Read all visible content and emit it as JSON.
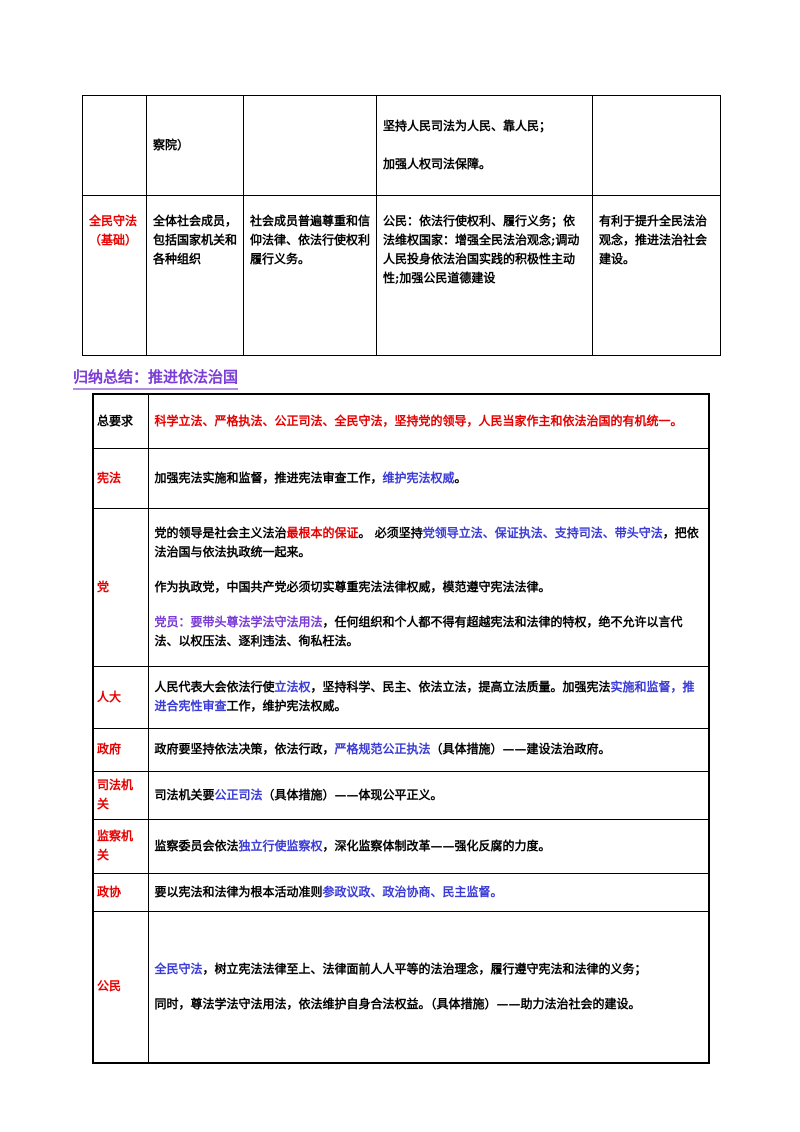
{
  "top_table": {
    "rows": [
      {
        "cells": [
          null,
          {
            "paragraphs": [
              "察院）"
            ]
          },
          null,
          {
            "paragraphs": [
              "坚持人民司法为人民、靠人民；",
              "加强人权司法保障。"
            ]
          },
          null
        ]
      },
      {
        "cells": [
          {
            "paragraphs": [
              "全民守法（基础）"
            ],
            "color": "#e60000"
          },
          {
            "paragraphs": [
              "全体社会成员，包括国家机关和各种组织"
            ]
          },
          {
            "paragraphs": [
              "社会成员普遍尊重和信仰法律、依法行使权利履行义务。"
            ]
          },
          {
            "paragraphs": [
              "公民：依法行使权利、履行义务；依法维权国家：增强全民法治观念;调动人民投身依法治国实践的积极性主动性;加强公民道德建设"
            ]
          },
          {
            "paragraphs": [
              "有利于提升全民法治观念，推进法治社会建设。"
            ]
          }
        ]
      }
    ]
  },
  "section_heading": "归纳总结：推进依法治国",
  "summary_table": {
    "rows": [
      {
        "label": "总要求",
        "label_color": "#000000",
        "paragraphs": [
          [
            {
              "text": "科学立法、严格执法、公正司法、全民守法，坚持党的领导，人民当家作主和依法治国的有机统一。",
              "color": "#e60000"
            }
          ]
        ]
      },
      {
        "label": "宪法",
        "label_color": "#e60000",
        "paragraphs": [
          [
            {
              "text": "加强宪法实施和监督，推进宪法审查工作，",
              "color": "#000000"
            },
            {
              "text": "维护宪法权威",
              "color": "#3b3bd6"
            },
            {
              "text": "。",
              "color": "#000000"
            }
          ]
        ]
      },
      {
        "label": "党",
        "label_color": "#e60000",
        "paragraphs": [
          [
            {
              "text": "党的领导是社会主义法治",
              "color": "#000000"
            },
            {
              "text": "最根本的保证",
              "color": "#e60000"
            },
            {
              "text": "。 必须坚持",
              "color": "#000000"
            },
            {
              "text": "党领导立法、保证执法、支持司法、带头守法",
              "color": "#3b3bd6"
            },
            {
              "text": "，把依法治国与依法执政统一起来。",
              "color": "#000000"
            }
          ],
          [
            {
              "text": "作为执政党，中国共产党必须切实尊重宪法法律权威，模范遵守宪法法律。",
              "color": "#000000"
            }
          ],
          [
            {
              "text": "党员：要带头尊法学法守法用法",
              "color": "#7a3bd6"
            },
            {
              "text": "，任何组织和个人都不得有超越宪法和法律的特权，绝不允许以言代法、以权压法、逐利违法、徇私枉法。",
              "color": "#000000"
            }
          ]
        ]
      },
      {
        "label": "人大",
        "label_color": "#e60000",
        "paragraphs": [
          [
            {
              "text": "人民代表大会依法行使",
              "color": "#000000"
            },
            {
              "text": "立法权",
              "color": "#3b3bd6"
            },
            {
              "text": "，坚持科学、民主、依法立法，提高立法质量。加强宪法",
              "color": "#000000"
            },
            {
              "text": "实施和监督，推进合宪性审查",
              "color": "#3b3bd6"
            },
            {
              "text": "工作，维护宪法权威。",
              "color": "#000000"
            }
          ]
        ]
      },
      {
        "label": "政府",
        "label_color": "#e60000",
        "paragraphs": [
          [
            {
              "text": "政府要坚持依法决策，依法行政，",
              "color": "#000000"
            },
            {
              "text": "严格规范公正执法",
              "color": "#3b3bd6"
            },
            {
              "text": "（具体措施）——建设法治政府。",
              "color": "#000000"
            }
          ]
        ]
      },
      {
        "label": "司法机关",
        "label_color": "#e60000",
        "paragraphs": [
          [
            {
              "text": "司法机关要",
              "color": "#000000"
            },
            {
              "text": "公正司法",
              "color": "#3b3bd6"
            },
            {
              "text": "（具体措施）——体现公平正义。",
              "color": "#000000"
            }
          ]
        ]
      },
      {
        "label": "监察机关",
        "label_color": "#e60000",
        "paragraphs": [
          [
            {
              "text": "监察委员会依法",
              "color": "#000000"
            },
            {
              "text": "独立行使监察权",
              "color": "#3b3bd6"
            },
            {
              "text": "，深化监察体制改革——强化反腐的力度。",
              "color": "#000000"
            }
          ]
        ]
      },
      {
        "label": "政协",
        "label_color": "#e60000",
        "paragraphs": [
          [
            {
              "text": "要以宪法和法律为根本活动准则",
              "color": "#000000"
            },
            {
              "text": "参政议政、政治协商、民主监督。",
              "color": "#3b3bd6"
            }
          ]
        ]
      },
      {
        "label": "公民",
        "label_color": "#e60000",
        "paragraphs": [
          [
            {
              "text": "全民守法",
              "color": "#3b3bd6"
            },
            {
              "text": "，树立宪法法律至上、法律面前人人平等的法治理念，履行遵守宪法和法律的义务；",
              "color": "#000000"
            }
          ],
          [
            {
              "text": "同时，尊法学法守法用法，依法维护自身合法权益。（具体措施）——助力法治社会的建设。",
              "color": "#000000"
            }
          ]
        ]
      }
    ]
  }
}
